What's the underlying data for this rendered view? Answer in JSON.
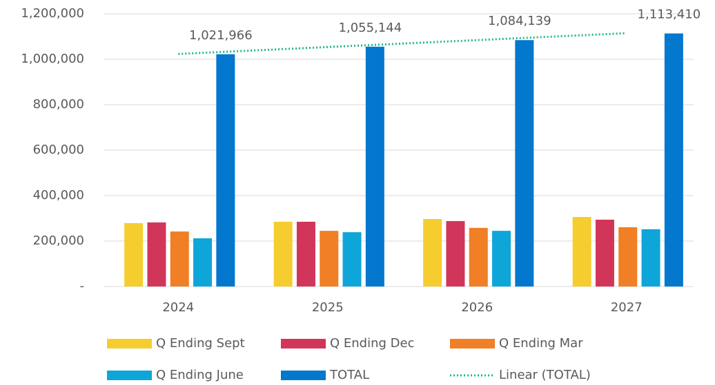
{
  "chart_data": {
    "type": "bar",
    "categories": [
      "2024",
      "2025",
      "2026",
      "2027"
    ],
    "series": [
      {
        "name": "Q Ending Sept",
        "color": "#f5cd2f",
        "values": [
          279000,
          285000,
          297000,
          306000
        ]
      },
      {
        "name": "Q Ending Dec",
        "color": "#d1365a",
        "values": [
          282000,
          285000,
          288000,
          294000
        ]
      },
      {
        "name": "Q Ending Mar",
        "color": "#f07f25",
        "values": [
          242000,
          245000,
          258000,
          261000
        ]
      },
      {
        "name": "Q Ending June",
        "color": "#0ea5d8",
        "values": [
          212000,
          239000,
          245000,
          252000
        ]
      },
      {
        "name": "TOTAL",
        "color": "#0477cf",
        "values": [
          1021966,
          1055144,
          1084139,
          1113410
        ],
        "value_labels": [
          "1,021,966",
          "1,055,144",
          "1,084,139",
          "1,113,410"
        ]
      }
    ],
    "trendline": {
      "name": "Linear (TOTAL)",
      "color": "#20b88a"
    },
    "ylim": [
      0,
      1200000
    ],
    "yticks": [
      {
        "value": 0,
        "label": "-"
      },
      {
        "value": 200000,
        "label": "200,000"
      },
      {
        "value": 400000,
        "label": "400,000"
      },
      {
        "value": 600000,
        "label": "600,000"
      },
      {
        "value": 800000,
        "label": "800,000"
      },
      {
        "value": 1000000,
        "label": "1,000,000"
      },
      {
        "value": 1200000,
        "label": "1,200,000"
      }
    ],
    "grid": true
  }
}
